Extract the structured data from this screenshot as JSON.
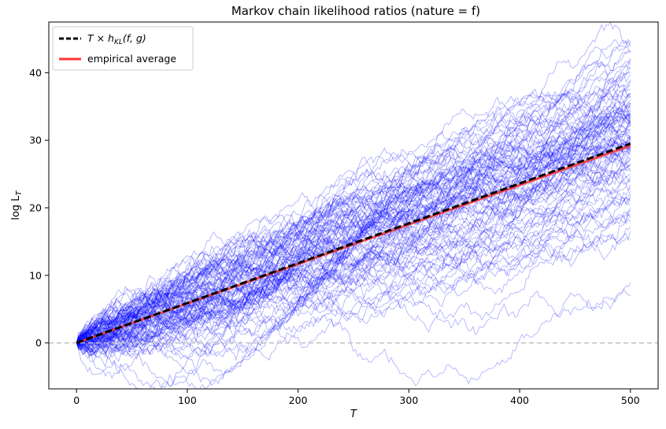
{
  "chart_data": {
    "type": "line",
    "title": "Markov chain likelihood ratios (nature = f)",
    "xlabel": "T",
    "ylabel": "log L_T",
    "xlim": [
      -25,
      525
    ],
    "ylim": [
      -6.8,
      47.5
    ],
    "x_ticks": [
      0,
      100,
      200,
      300,
      400,
      500
    ],
    "y_ticks": [
      0,
      10,
      20,
      30,
      40
    ],
    "grid": false,
    "legend_position": "top-left",
    "reference_line": {
      "y": 0,
      "style": "dashed",
      "color": "#bfbfbf"
    },
    "path_color": "#0000ff",
    "path_count": 100,
    "path_final_values": [
      44.5,
      44.0,
      43.2,
      42.0,
      41.2,
      40.0,
      39.0,
      38.2,
      37.5,
      37.0,
      36.5,
      36.0,
      35.5,
      35.2,
      34.8,
      34.4,
      34.0,
      33.6,
      33.2,
      32.8,
      32.4,
      32.0,
      31.6,
      31.3,
      31.0,
      30.7,
      30.4,
      30.1,
      29.8,
      29.5,
      29.2,
      28.9,
      28.6,
      28.3,
      28.0,
      27.7,
      27.4,
      27.0,
      26.6,
      26.2,
      25.8,
      25.4,
      25.0,
      24.6,
      24.2,
      23.8,
      23.4,
      23.0,
      22.5,
      22.0,
      21.5,
      21.0,
      20.5,
      20.0,
      19.5,
      19.0,
      18.5,
      18.0,
      17.2,
      16.5,
      15.5,
      9.0,
      7.0
    ],
    "series": [
      {
        "name": "$T \\times h_{KL}(f,g)$",
        "x": [
          0,
          500
        ],
        "y": [
          0,
          29.5
        ],
        "color": "#000000",
        "style": "dashed"
      },
      {
        "name": "empirical average",
        "x": [
          0,
          500
        ],
        "y": [
          0,
          29.2
        ],
        "color": "#ff3333",
        "style": "solid"
      }
    ]
  },
  "legend": {
    "entries": [
      {
        "math_main": "T × h",
        "math_sub": "KL",
        "math_tail": "(f, g)"
      },
      {
        "text": "empirical average"
      }
    ]
  },
  "labels": {
    "xlabel": "T",
    "ylabel_main": "log L",
    "ylabel_sub": "T"
  }
}
